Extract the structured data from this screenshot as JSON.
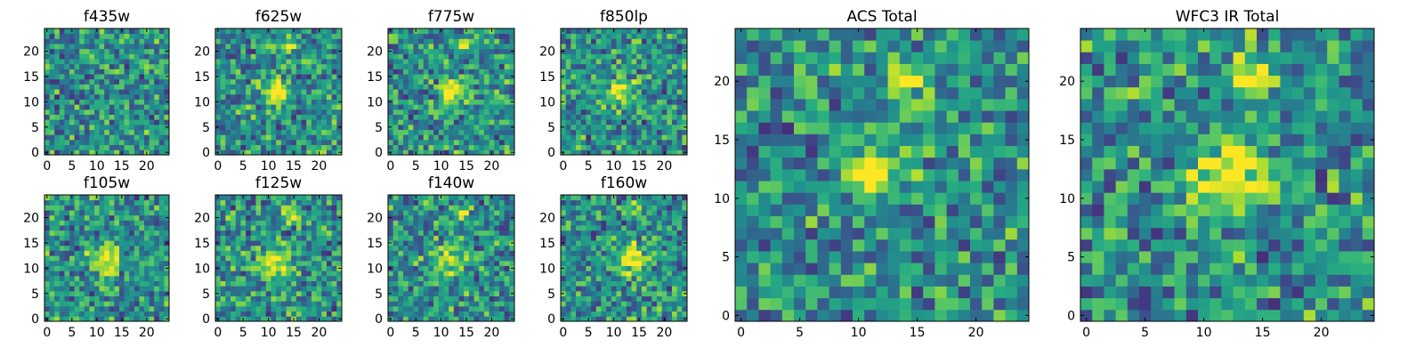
{
  "chart_data": [
    {
      "type": "heatmap",
      "title": "f435w",
      "xticks": [
        "0",
        "5",
        "10",
        "15",
        "20"
      ],
      "yticks": [
        "0",
        "5",
        "10",
        "15",
        "20"
      ],
      "xlim": [
        0,
        25
      ],
      "ylim": [
        0,
        25
      ],
      "grid_size": [
        25,
        25
      ],
      "colormap": "viridis",
      "value_range": [
        0,
        1
      ],
      "peaks": []
    },
    {
      "type": "heatmap",
      "title": "f625w",
      "xticks": [
        "0",
        "5",
        "10",
        "15",
        "20"
      ],
      "yticks": [
        "0",
        "5",
        "10",
        "15",
        "20"
      ],
      "xlim": [
        0,
        25
      ],
      "ylim": [
        0,
        25
      ],
      "grid_size": [
        25,
        25
      ],
      "colormap": "viridis",
      "value_range": [
        0,
        1
      ],
      "peaks": [
        {
          "x": 12,
          "y": 12,
          "amp": 0.7,
          "sigma": 1.6
        },
        {
          "x": 14,
          "y": 21,
          "amp": 0.4,
          "sigma": 1.0
        }
      ]
    },
    {
      "type": "heatmap",
      "title": "f775w",
      "xticks": [
        "0",
        "5",
        "10",
        "15",
        "20"
      ],
      "yticks": [
        "0",
        "5",
        "10",
        "15",
        "20"
      ],
      "xlim": [
        0,
        25
      ],
      "ylim": [
        0,
        25
      ],
      "grid_size": [
        25,
        25
      ],
      "colormap": "viridis",
      "value_range": [
        0,
        1
      ],
      "peaks": [
        {
          "x": 12,
          "y": 12,
          "amp": 0.75,
          "sigma": 1.6
        },
        {
          "x": 14,
          "y": 21,
          "amp": 0.35,
          "sigma": 1.0
        }
      ]
    },
    {
      "type": "heatmap",
      "title": "f850lp",
      "xticks": [
        "0",
        "5",
        "10",
        "15",
        "20"
      ],
      "yticks": [
        "0",
        "5",
        "10",
        "15",
        "20"
      ],
      "xlim": [
        0,
        25
      ],
      "ylim": [
        0,
        25
      ],
      "grid_size": [
        25,
        25
      ],
      "colormap": "viridis",
      "value_range": [
        0,
        1
      ],
      "peaks": [
        {
          "x": 11,
          "y": 12,
          "amp": 0.5,
          "sigma": 1.8
        },
        {
          "x": 14,
          "y": 20,
          "amp": 0.3,
          "sigma": 1.0
        }
      ]
    },
    {
      "type": "heatmap",
      "title": "f105w",
      "xticks": [
        "0",
        "5",
        "10",
        "15",
        "20"
      ],
      "yticks": [
        "0",
        "5",
        "10",
        "15",
        "20"
      ],
      "xlim": [
        0,
        25
      ],
      "ylim": [
        0,
        25
      ],
      "grid_size": [
        25,
        25
      ],
      "colormap": "viridis",
      "value_range": [
        0,
        1
      ],
      "peaks": [
        {
          "x": 12,
          "y": 12,
          "amp": 0.55,
          "sigma": 2.0
        }
      ]
    },
    {
      "type": "heatmap",
      "title": "f125w",
      "xticks": [
        "0",
        "5",
        "10",
        "15",
        "20"
      ],
      "yticks": [
        "0",
        "5",
        "10",
        "15",
        "20"
      ],
      "xlim": [
        0,
        25
      ],
      "ylim": [
        0,
        25
      ],
      "grid_size": [
        25,
        25
      ],
      "colormap": "viridis",
      "value_range": [
        0,
        1
      ],
      "peaks": [
        {
          "x": 12,
          "y": 11,
          "amp": 0.55,
          "sigma": 2.2
        },
        {
          "x": 14,
          "y": 21,
          "amp": 0.4,
          "sigma": 1.2
        }
      ]
    },
    {
      "type": "heatmap",
      "title": "f140w",
      "xticks": [
        "0",
        "5",
        "10",
        "15",
        "20"
      ],
      "yticks": [
        "0",
        "5",
        "10",
        "15",
        "20"
      ],
      "xlim": [
        0,
        25
      ],
      "ylim": [
        0,
        25
      ],
      "grid_size": [
        25,
        25
      ],
      "colormap": "viridis",
      "value_range": [
        0,
        1
      ],
      "peaks": [
        {
          "x": 12,
          "y": 12,
          "amp": 0.45,
          "sigma": 2.2
        },
        {
          "x": 14,
          "y": 21,
          "amp": 0.35,
          "sigma": 1.2
        }
      ]
    },
    {
      "type": "heatmap",
      "title": "f160w",
      "xticks": [
        "0",
        "5",
        "10",
        "15",
        "20"
      ],
      "yticks": [
        "0",
        "5",
        "10",
        "15",
        "20"
      ],
      "xlim": [
        0,
        25
      ],
      "ylim": [
        0,
        25
      ],
      "grid_size": [
        25,
        25
      ],
      "colormap": "viridis",
      "value_range": [
        0,
        1
      ],
      "peaks": [
        {
          "x": 13,
          "y": 12,
          "amp": 0.55,
          "sigma": 2.0
        },
        {
          "x": 14,
          "y": 22,
          "amp": 0.35,
          "sigma": 1.0
        }
      ]
    },
    {
      "type": "heatmap",
      "title": "ACS Total",
      "xticks": [
        "0",
        "5",
        "10",
        "15",
        "20"
      ],
      "yticks": [
        "0",
        "5",
        "10",
        "15",
        "20"
      ],
      "xlim": [
        0,
        25
      ],
      "ylim": [
        0,
        25
      ],
      "grid_size": [
        25,
        25
      ],
      "colormap": "viridis",
      "value_range": [
        0,
        1
      ],
      "peaks": [
        {
          "x": 11.5,
          "y": 12,
          "amp": 0.75,
          "sigma": 1.5
        },
        {
          "x": 14,
          "y": 20.5,
          "amp": 0.55,
          "sigma": 1.0
        }
      ]
    },
    {
      "type": "heatmap",
      "title": "WFC3 IR Total",
      "xticks": [
        "0",
        "5",
        "10",
        "15",
        "20"
      ],
      "yticks": [
        "0",
        "5",
        "10",
        "15",
        "20"
      ],
      "xlim": [
        0,
        25
      ],
      "ylim": [
        0,
        25
      ],
      "grid_size": [
        25,
        25
      ],
      "colormap": "viridis",
      "value_range": [
        0,
        1
      ],
      "peaks": [
        {
          "x": 12,
          "y": 12,
          "amp": 0.7,
          "sigma": 2.0
        },
        {
          "x": 13.5,
          "y": 20.5,
          "amp": 0.5,
          "sigma": 1.4
        }
      ]
    }
  ]
}
